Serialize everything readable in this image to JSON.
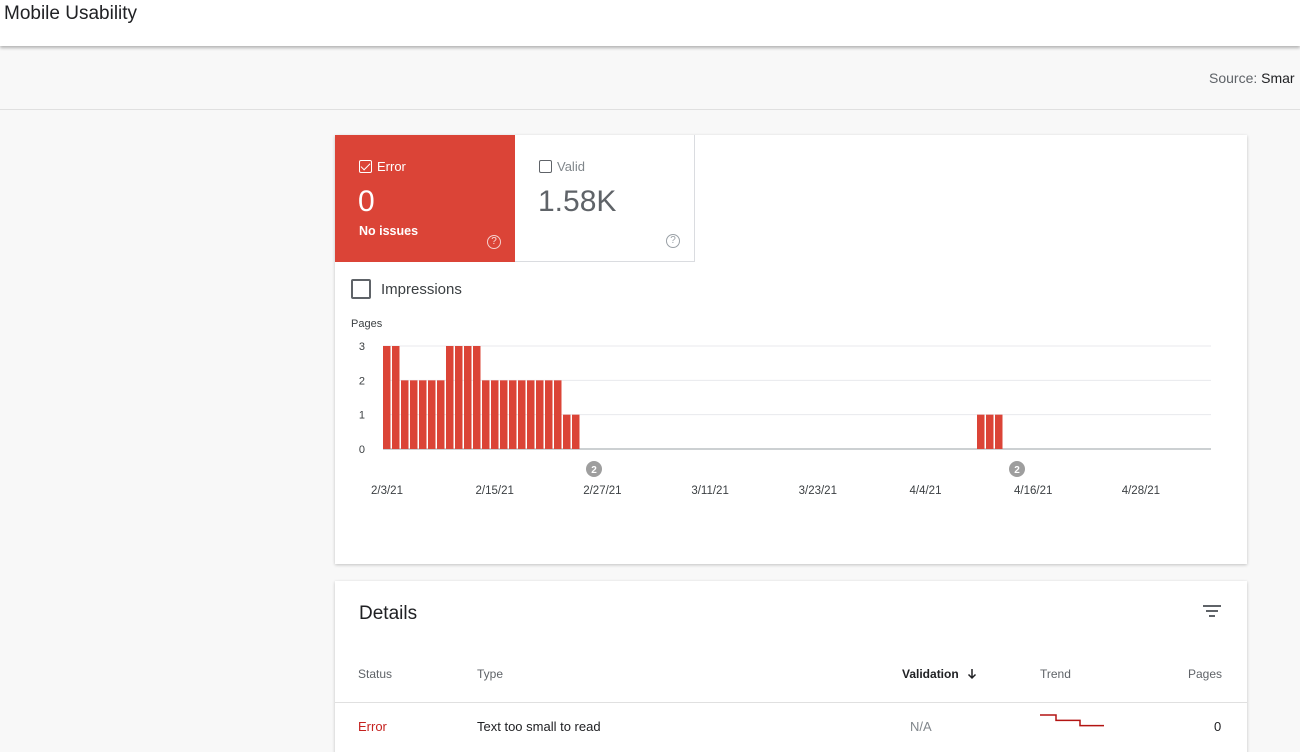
{
  "header": {
    "title": "Mobile Usability"
  },
  "subbar": {
    "source_label": "Source:",
    "source_value": "Smar"
  },
  "summary": {
    "error": {
      "label": "Error",
      "value": "0",
      "subtitle": "No issues",
      "checked": true,
      "color": "#db4437",
      "help_icon": "?"
    },
    "valid": {
      "label": "Valid",
      "value": "1.58K",
      "checked": false,
      "help_icon": "?"
    }
  },
  "impressions": {
    "label": "Impressions",
    "checked": false
  },
  "chart_data": {
    "type": "bar",
    "ylabel": "Pages",
    "ylim": [
      0,
      3
    ],
    "y_ticks": [
      "0",
      "1",
      "2",
      "3"
    ],
    "x_tick_labels": [
      "2/3/21",
      "2/15/21",
      "2/27/21",
      "3/11/21",
      "3/23/21",
      "4/4/21",
      "4/16/21",
      "4/28/21"
    ],
    "bar_color": "#db4437",
    "series": [
      {
        "dates": [
          "2/3/21",
          "2/4/21",
          "2/5/21",
          "2/6/21",
          "2/7/21",
          "2/8/21",
          "2/9/21",
          "2/10/21",
          "2/11/21",
          "2/12/21",
          "2/13/21",
          "2/14/21",
          "2/15/21",
          "2/16/21",
          "2/17/21",
          "2/18/21",
          "2/19/21",
          "2/20/21",
          "2/21/21",
          "2/22/21",
          "2/23/21",
          "2/24/21",
          "4/10/21",
          "4/11/21",
          "4/12/21"
        ],
        "values": [
          3,
          3,
          2,
          2,
          2,
          2,
          2,
          3,
          3,
          3,
          3,
          2,
          2,
          2,
          2,
          2,
          2,
          2,
          2,
          2,
          1,
          1,
          1,
          1,
          1
        ]
      }
    ],
    "annotations": [
      {
        "date": "2/26/21",
        "label": "2"
      },
      {
        "date": "4/14/21",
        "label": "2"
      }
    ],
    "grid": true
  },
  "details": {
    "title": "Details",
    "filter_icon": "filter-icon",
    "columns": {
      "status": "Status",
      "type": "Type",
      "validation": "Validation",
      "trend": "Trend",
      "pages": "Pages"
    },
    "rows": [
      {
        "status": "Error",
        "type": "Text too small to read",
        "validation": "N/A",
        "pages": "0",
        "trend": [
          3,
          3,
          2,
          2,
          2,
          1,
          1,
          1,
          1
        ]
      }
    ]
  }
}
